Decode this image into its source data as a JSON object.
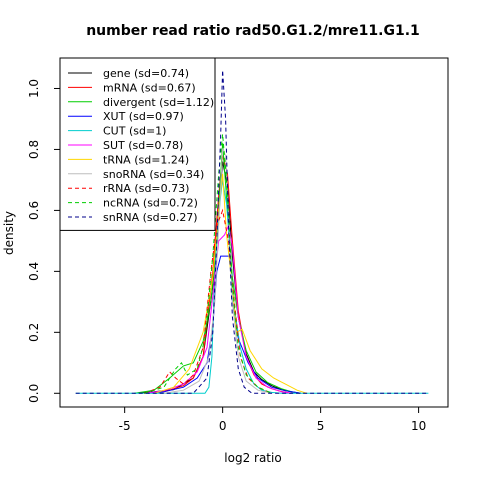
{
  "chart_data": {
    "type": "line",
    "title": "number read ratio rad50.G1.2/mre11.G1.1",
    "xlabel": "log2 ratio",
    "ylabel": "density",
    "xlim": [
      -8.3,
      11.5
    ],
    "ylim": [
      -0.045,
      1.1
    ],
    "x_ticks": [
      -5,
      0,
      5,
      10
    ],
    "y_ticks": [
      0.0,
      0.2,
      0.4,
      0.6,
      0.8,
      1.0
    ],
    "x_tick_labels": [
      "-5",
      "0",
      "5",
      "10"
    ],
    "y_tick_labels": [
      "0.0",
      "0.2",
      "0.4",
      "0.6",
      "0.8",
      "1.0"
    ],
    "legend_position": "top-left",
    "series": [
      {
        "name": "gene (sd=0.74)",
        "color": "#000000",
        "dash": "solid",
        "points": [
          [
            -4.5,
            0
          ],
          [
            -3.5,
            0.005
          ],
          [
            -2.5,
            0.012
          ],
          [
            -1.5,
            0.05
          ],
          [
            -1.0,
            0.12
          ],
          [
            -0.5,
            0.35
          ],
          [
            -0.2,
            0.6
          ],
          [
            0.0,
            0.76
          ],
          [
            0.25,
            0.68
          ],
          [
            0.5,
            0.45
          ],
          [
            0.8,
            0.25
          ],
          [
            1.2,
            0.13
          ],
          [
            1.6,
            0.07
          ],
          [
            2.0,
            0.045
          ],
          [
            2.5,
            0.025
          ],
          [
            3.0,
            0.012
          ],
          [
            3.5,
            0.005
          ],
          [
            4.0,
            0
          ]
        ]
      },
      {
        "name": "mRNA (sd=0.67)",
        "color": "#ff0000",
        "dash": "solid",
        "points": [
          [
            -4.0,
            0
          ],
          [
            -3.0,
            0.005
          ],
          [
            -2.0,
            0.025
          ],
          [
            -1.5,
            0.05
          ],
          [
            -1.0,
            0.12
          ],
          [
            -0.5,
            0.4
          ],
          [
            -0.2,
            0.65
          ],
          [
            0.0,
            0.78
          ],
          [
            0.25,
            0.72
          ],
          [
            0.5,
            0.5
          ],
          [
            0.8,
            0.27
          ],
          [
            1.2,
            0.12
          ],
          [
            1.6,
            0.06
          ],
          [
            2.0,
            0.03
          ],
          [
            2.5,
            0.015
          ],
          [
            3.0,
            0.006
          ],
          [
            3.5,
            0
          ]
        ]
      },
      {
        "name": "divergent (sd=1.12)",
        "color": "#00cd00",
        "dash": "solid",
        "points": [
          [
            -4.5,
            0
          ],
          [
            -3.5,
            0.01
          ],
          [
            -2.7,
            0.05
          ],
          [
            -2.0,
            0.09
          ],
          [
            -1.5,
            0.1
          ],
          [
            -1.0,
            0.17
          ],
          [
            -0.6,
            0.3
          ],
          [
            -0.3,
            0.5
          ],
          [
            0.0,
            0.82
          ],
          [
            0.25,
            0.6
          ],
          [
            0.5,
            0.38
          ],
          [
            0.8,
            0.25
          ],
          [
            1.2,
            0.14
          ],
          [
            1.7,
            0.07
          ],
          [
            2.3,
            0.035
          ],
          [
            3.0,
            0.015
          ],
          [
            3.8,
            0
          ]
        ]
      },
      {
        "name": "XUT (sd=0.97)",
        "color": "#0000ff",
        "dash": "solid",
        "points": [
          [
            -3.8,
            0
          ],
          [
            -3.0,
            0.005
          ],
          [
            -2.0,
            0.02
          ],
          [
            -1.3,
            0.05
          ],
          [
            -0.8,
            0.1
          ],
          [
            -0.5,
            0.22
          ],
          [
            -0.3,
            0.4
          ],
          [
            -0.1,
            0.45
          ],
          [
            0.2,
            0.45
          ],
          [
            0.4,
            0.45
          ],
          [
            0.5,
            0.3
          ],
          [
            0.8,
            0.18
          ],
          [
            1.3,
            0.1
          ],
          [
            1.8,
            0.05
          ],
          [
            2.5,
            0.02
          ],
          [
            3.2,
            0.008
          ],
          [
            4.0,
            0
          ]
        ]
      },
      {
        "name": "CUT (sd=1)",
        "color": "#00cdcd",
        "dash": "solid",
        "points": [
          [
            -7.5,
            0
          ],
          [
            -5,
            0
          ],
          [
            -3,
            0
          ],
          [
            -1.5,
            0
          ],
          [
            -0.9,
            0
          ],
          [
            -0.7,
            0.02
          ],
          [
            -0.55,
            0.12
          ],
          [
            -0.45,
            0.3
          ],
          [
            -0.3,
            0.52
          ],
          [
            -0.1,
            0.65
          ],
          [
            0.0,
            0.7
          ],
          [
            0.2,
            0.62
          ],
          [
            0.4,
            0.45
          ],
          [
            0.6,
            0.28
          ],
          [
            0.9,
            0.15
          ],
          [
            1.2,
            0.08
          ],
          [
            1.6,
            0.03
          ],
          [
            2.0,
            0.01
          ],
          [
            2.5,
            0.003
          ],
          [
            3,
            0
          ],
          [
            5,
            0
          ],
          [
            7,
            0
          ],
          [
            10.5,
            0
          ]
        ]
      },
      {
        "name": "SUT (sd=0.78)",
        "color": "#ff00ff",
        "dash": "solid",
        "points": [
          [
            -4.0,
            0
          ],
          [
            -3.0,
            0.008
          ],
          [
            -2.0,
            0.03
          ],
          [
            -1.3,
            0.07
          ],
          [
            -0.8,
            0.15
          ],
          [
            -0.5,
            0.32
          ],
          [
            -0.2,
            0.5
          ],
          [
            0.1,
            0.52
          ],
          [
            0.3,
            0.55
          ],
          [
            0.5,
            0.48
          ],
          [
            0.8,
            0.25
          ],
          [
            1.2,
            0.12
          ],
          [
            1.7,
            0.05
          ],
          [
            2.3,
            0.02
          ],
          [
            3.0,
            0.005
          ],
          [
            3.5,
            0
          ]
        ]
      },
      {
        "name": "tRNA (sd=1.24)",
        "color": "#ffd700",
        "dash": "solid",
        "points": [
          [
            -3.5,
            0
          ],
          [
            -2.5,
            0.02
          ],
          [
            -1.7,
            0.08
          ],
          [
            -1.0,
            0.2
          ],
          [
            -0.5,
            0.38
          ],
          [
            -0.2,
            0.6
          ],
          [
            0.0,
            0.72
          ],
          [
            0.2,
            0.52
          ],
          [
            0.5,
            0.35
          ],
          [
            0.7,
            0.2
          ],
          [
            1.0,
            0.21
          ],
          [
            1.4,
            0.14
          ],
          [
            2.0,
            0.08
          ],
          [
            2.6,
            0.05
          ],
          [
            3.2,
            0.03
          ],
          [
            3.8,
            0.01
          ],
          [
            4.3,
            0
          ]
        ]
      },
      {
        "name": "snoRNA (sd=0.34)",
        "color": "#bebebe",
        "dash": "solid",
        "points": [
          [
            -3.0,
            0
          ],
          [
            -2.0,
            0.01
          ],
          [
            -1.2,
            0.04
          ],
          [
            -0.7,
            0.12
          ],
          [
            -0.4,
            0.3
          ],
          [
            -0.2,
            0.55
          ],
          [
            0.0,
            0.8
          ],
          [
            0.15,
            0.78
          ],
          [
            0.3,
            0.6
          ],
          [
            0.5,
            0.3
          ],
          [
            0.8,
            0.12
          ],
          [
            1.2,
            0.04
          ],
          [
            1.8,
            0.01
          ],
          [
            2.5,
            0
          ]
        ]
      },
      {
        "name": "rRNA (sd=0.73)",
        "color": "#ff0000",
        "dash": "dashed",
        "points": [
          [
            -4.0,
            0
          ],
          [
            -3.2,
            0.02
          ],
          [
            -2.7,
            0.07
          ],
          [
            -2.4,
            0.05
          ],
          [
            -2.0,
            0.03
          ],
          [
            -1.5,
            0.06
          ],
          [
            -1.0,
            0.15
          ],
          [
            -0.6,
            0.4
          ],
          [
            -0.3,
            0.55
          ],
          [
            0.0,
            0.6
          ],
          [
            0.3,
            0.5
          ],
          [
            0.6,
            0.3
          ],
          [
            0.9,
            0.12
          ],
          [
            1.3,
            0.05
          ],
          [
            1.8,
            0.02
          ],
          [
            2.5,
            0
          ]
        ]
      },
      {
        "name": "ncRNA (sd=0.72)",
        "color": "#00cd00",
        "dash": "dashed",
        "points": [
          [
            -4.0,
            0
          ],
          [
            -3.0,
            0.02
          ],
          [
            -2.4,
            0.08
          ],
          [
            -2.1,
            0.1
          ],
          [
            -1.8,
            0.06
          ],
          [
            -1.3,
            0.08
          ],
          [
            -0.9,
            0.18
          ],
          [
            -0.5,
            0.45
          ],
          [
            -0.2,
            0.72
          ],
          [
            0.0,
            0.85
          ],
          [
            0.2,
            0.7
          ],
          [
            0.5,
            0.35
          ],
          [
            0.8,
            0.15
          ],
          [
            1.2,
            0.06
          ],
          [
            1.8,
            0.02
          ],
          [
            2.5,
            0
          ]
        ]
      },
      {
        "name": "snRNA (sd=0.27)",
        "color": "#00008b",
        "dash": "dashed",
        "points": [
          [
            -7.5,
            0
          ],
          [
            -5,
            0
          ],
          [
            -3,
            0
          ],
          [
            -1.5,
            0
          ],
          [
            -0.8,
            0.05
          ],
          [
            -0.5,
            0.2
          ],
          [
            -0.3,
            0.5
          ],
          [
            -0.1,
            0.85
          ],
          [
            0.0,
            1.06
          ],
          [
            0.15,
            0.9
          ],
          [
            0.3,
            0.55
          ],
          [
            0.5,
            0.25
          ],
          [
            0.8,
            0.08
          ],
          [
            1.1,
            0.02
          ],
          [
            1.5,
            0
          ],
          [
            3,
            0
          ],
          [
            5,
            0
          ],
          [
            7,
            0
          ],
          [
            10.5,
            0
          ]
        ]
      }
    ]
  }
}
